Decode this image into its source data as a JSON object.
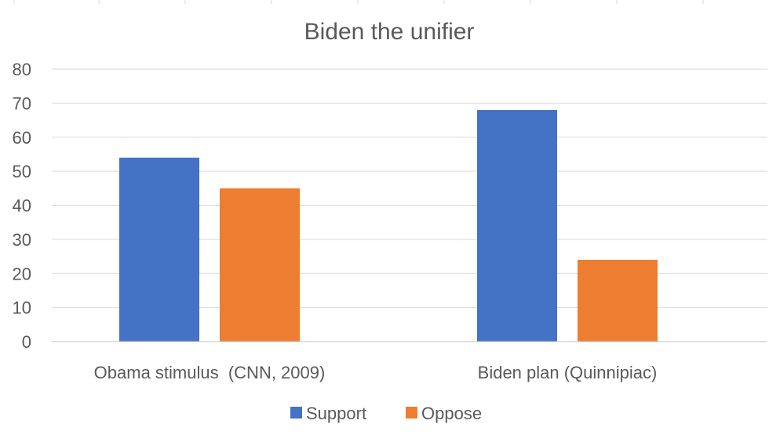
{
  "chart_data": {
    "type": "bar",
    "title": "Biden the unifier",
    "categories": [
      "Obama stimulus  (CNN, 2009)",
      "Biden plan (Quinnipiac)"
    ],
    "series": [
      {
        "name": "Support",
        "values": [
          54,
          68
        ],
        "color": "#4472c4"
      },
      {
        "name": "Oppose",
        "values": [
          45,
          24
        ],
        "color": "#ed7d31"
      }
    ],
    "ylim": [
      0,
      80
    ],
    "yticks": [
      0,
      10,
      20,
      30,
      40,
      50,
      60,
      70,
      80
    ],
    "grid": true,
    "legend": "bottom"
  }
}
